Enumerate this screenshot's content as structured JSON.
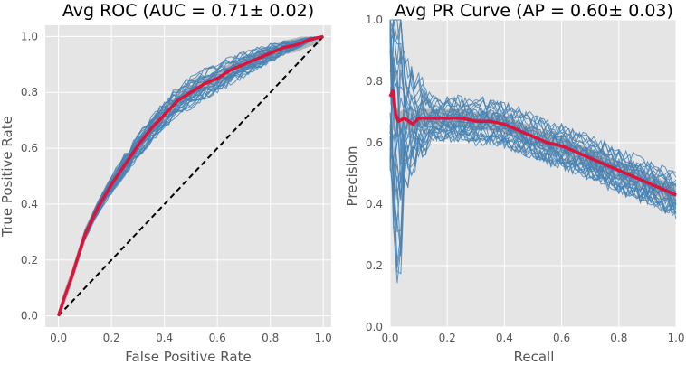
{
  "chart_data": [
    {
      "type": "line",
      "title": "Avg ROC (AUC = 0.71± 0.02)",
      "xlabel": "False Positive Rate",
      "ylabel": "True Positive Rate",
      "xlim": [
        -0.05,
        1.03
      ],
      "ylim": [
        -0.04,
        1.04
      ],
      "xticks": [
        "0.0",
        "0.2",
        "0.4",
        "0.6",
        "0.8",
        "1.0"
      ],
      "yticks": [
        "0.0",
        "0.2",
        "0.4",
        "0.6",
        "0.8",
        "1.0"
      ],
      "grid": true,
      "mean_curve": {
        "x": [
          0,
          0.02,
          0.05,
          0.08,
          0.1,
          0.15,
          0.2,
          0.25,
          0.3,
          0.35,
          0.4,
          0.45,
          0.5,
          0.55,
          0.6,
          0.65,
          0.7,
          0.75,
          0.8,
          0.85,
          0.9,
          0.95,
          1.0
        ],
        "y": [
          0,
          0.06,
          0.14,
          0.23,
          0.29,
          0.39,
          0.47,
          0.54,
          0.61,
          0.67,
          0.72,
          0.77,
          0.8,
          0.83,
          0.85,
          0.88,
          0.9,
          0.92,
          0.94,
          0.96,
          0.97,
          0.99,
          1.0
        ]
      },
      "std_band": 0.025,
      "chance_line": {
        "x": [
          0,
          1
        ],
        "y": [
          0,
          1
        ]
      },
      "fold_count": 30,
      "colors": {
        "mean": "#dc143c",
        "folds": "#4682b4",
        "band": "#a8a8a8",
        "chance": "#000000"
      }
    },
    {
      "type": "line",
      "title": "Avg PR Curve (AP = 0.60± 0.03)",
      "xlabel": "Recall",
      "ylabel": "Precision",
      "xlim": [
        0,
        1.0
      ],
      "ylim": [
        0,
        1.0
      ],
      "xticks": [
        "0.0",
        "0.2",
        "0.4",
        "0.6",
        "0.8",
        "1.0"
      ],
      "yticks": [
        "0.0",
        "0.2",
        "0.4",
        "0.6",
        "0.8",
        "1.0"
      ],
      "grid": true,
      "mean_curve": {
        "x": [
          0,
          0.01,
          0.02,
          0.03,
          0.05,
          0.08,
          0.1,
          0.15,
          0.2,
          0.25,
          0.3,
          0.35,
          0.4,
          0.45,
          0.5,
          0.55,
          0.6,
          0.65,
          0.7,
          0.75,
          0.8,
          0.85,
          0.9,
          0.95,
          1.0
        ],
        "y": [
          0.75,
          0.77,
          0.69,
          0.67,
          0.68,
          0.66,
          0.68,
          0.68,
          0.68,
          0.68,
          0.67,
          0.67,
          0.66,
          0.64,
          0.62,
          0.6,
          0.59,
          0.57,
          0.55,
          0.53,
          0.51,
          0.49,
          0.47,
          0.45,
          0.43
        ]
      },
      "std_band": 0.03,
      "fold_count": 30,
      "colors": {
        "mean": "#dc143c",
        "folds": "#4682b4",
        "band": "#a8a8a8"
      }
    }
  ]
}
